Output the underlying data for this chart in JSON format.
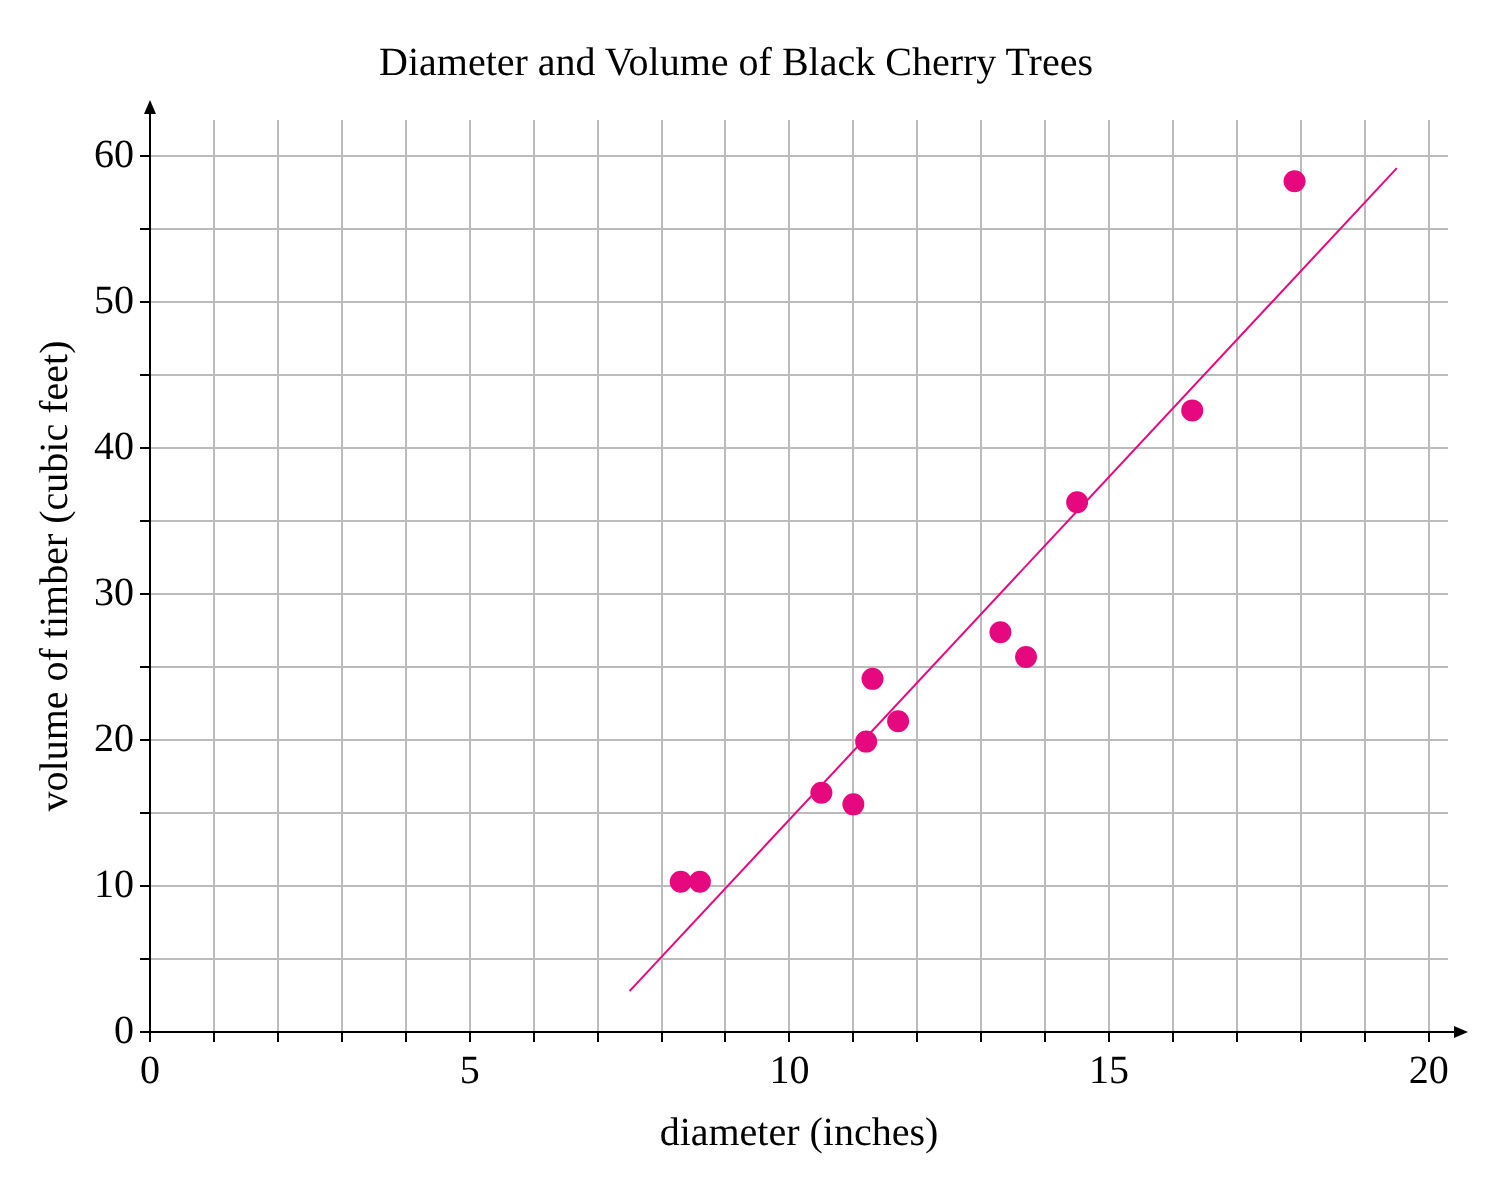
{
  "chart_data": {
    "type": "scatter",
    "title": "Diameter and Volume of Black Cherry Trees",
    "xlabel": "diameter (inches)",
    "ylabel": "volume of timber (cubic feet)",
    "x": [
      8.3,
      8.6,
      10.5,
      11.0,
      11.2,
      11.3,
      11.7,
      13.3,
      13.7,
      14.5,
      16.3,
      17.9
    ],
    "series": [
      {
        "color": "#e6087e",
        "values": [
          10.3,
          10.3,
          16.4,
          15.6,
          19.9,
          24.2,
          21.3,
          27.4,
          25.7,
          36.3,
          42.6,
          58.3
        ]
      },
      {
        "type": "line",
        "color": "#e6087e",
        "x": [
          7.5,
          19.5
        ],
        "values": [
          2.8,
          59.2
        ],
        "marker": "none"
      }
    ],
    "xlim": [
      0,
      20.3
    ],
    "ylim": [
      0,
      62.5
    ],
    "xticks": [
      0,
      {
        "value": 1,
        "label": null
      },
      {
        "value": 2,
        "label": null
      },
      {
        "value": 3,
        "label": null
      },
      {
        "value": 4,
        "label": null
      },
      5,
      {
        "value": 6,
        "label": null
      },
      {
        "value": 7,
        "label": null
      },
      {
        "value": 8,
        "label": null
      },
      {
        "value": 9,
        "label": null
      },
      10,
      {
        "value": 11,
        "label": null
      },
      {
        "value": 12,
        "label": null
      },
      {
        "value": 13,
        "label": null
      },
      {
        "value": 14,
        "label": null
      },
      15,
      {
        "value": 16,
        "label": null
      },
      {
        "value": 17,
        "label": null
      },
      {
        "value": 18,
        "label": null
      },
      {
        "value": 19,
        "label": null
      },
      20
    ],
    "yticks": [
      0,
      {
        "value": 5,
        "label": null
      },
      10,
      {
        "value": 15,
        "label": null
      },
      20,
      {
        "value": 25,
        "label": null
      },
      30,
      {
        "value": 35,
        "label": null
      },
      40,
      {
        "value": 45,
        "label": null
      },
      50,
      {
        "value": 55,
        "label": null
      },
      60
    ],
    "grid": true,
    "marker": "circle",
    "legend": false
  }
}
